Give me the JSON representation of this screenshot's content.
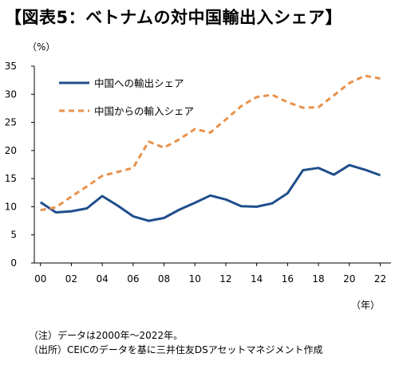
{
  "title": "【図表5：ベトナムの対中国輸出入シェア】",
  "y_unit": "（%）",
  "x_unit": "（年）",
  "notes": [
    "（注）データは2000年～2022年。",
    "（出所）CEICのデータを基に三井住友DSアセットマネジメント作成"
  ],
  "chart_data": {
    "type": "line",
    "x": [
      2000,
      2001,
      2002,
      2003,
      2004,
      2005,
      2006,
      2007,
      2008,
      2009,
      2010,
      2011,
      2012,
      2013,
      2014,
      2015,
      2016,
      2017,
      2018,
      2019,
      2020,
      2021,
      2022
    ],
    "x_tick_labels": [
      "00",
      "02",
      "04",
      "06",
      "08",
      "10",
      "12",
      "14",
      "16",
      "18",
      "20",
      "22"
    ],
    "x_tick_values": [
      2000,
      2002,
      2004,
      2006,
      2008,
      2010,
      2012,
      2014,
      2016,
      2018,
      2020,
      2022
    ],
    "y_tick_labels": [
      "0",
      "5",
      "10",
      "15",
      "20",
      "25",
      "30",
      "35"
    ],
    "ylim": [
      0,
      35
    ],
    "grid": false,
    "legend_position": "top-left",
    "series": [
      {
        "name": "中国への輸出シェア",
        "color": "#1f4e8c",
        "style": "solid",
        "values": [
          10.8,
          9.0,
          9.2,
          9.7,
          11.9,
          10.2,
          8.3,
          7.5,
          8.0,
          9.5,
          10.7,
          12.0,
          11.3,
          10.1,
          10.0,
          10.6,
          12.4,
          16.5,
          16.9,
          15.7,
          17.4,
          16.6,
          15.6
        ]
      },
      {
        "name": "中国からの輸入シェア",
        "color": "#e8914a",
        "style": "dashed",
        "values": [
          9.4,
          9.9,
          11.8,
          13.6,
          15.5,
          16.2,
          16.9,
          21.6,
          20.5,
          22.0,
          23.8,
          23.2,
          25.5,
          27.9,
          29.5,
          29.9,
          28.6,
          27.6,
          27.7,
          29.8,
          32.0,
          33.3,
          32.8
        ]
      }
    ]
  }
}
